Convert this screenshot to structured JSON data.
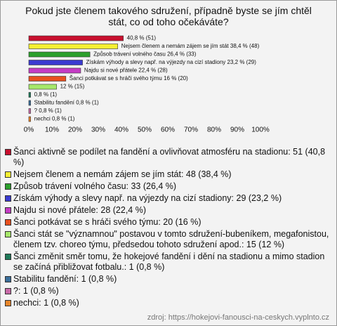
{
  "chart_data": {
    "type": "bar",
    "orientation": "horizontal",
    "title": "Pokud jste členem takového sdružení, případně byste se jím chtěl stát, co od toho očekáváte?",
    "categories": [
      "Šanci aktivně se podílet na fandění a ovlivňovat atmosféru na stadionu: 51 (40,8 %)",
      "Nejsem členem a nemám zájem se jím stát: 48 (38,4 %)",
      "Způsob trávení volného času: 33 (26,4 %)",
      "Získám výhody a slevy např. na výjezdy na cizí stadiony: 29 (23,2 %)",
      "Najdu si nové přátele: 28 (22,4 %)",
      "Šanci potkávat se s hráči svého týmu: 20 (16 %)",
      "Šanci stát se \"významnou\" postavou v tomto sdružení-bubeníkem, megafonistou, členem tzv. choreo týmu, předsedou tohoto sdružení apod.: 15 (12 %)",
      "Šanci změnit směr tomu, že hokejové fandění i dění na stadionu a mimo stadion se začíná přibližovat fotbalu.: 1 (0,8 %)",
      "Stabilitu fandění: 1 (0,8 %)",
      "?: 1 (0,8 %)",
      "nechci: 1 (0,8 %)"
    ],
    "values": [
      40.8,
      38.4,
      26.4,
      23.2,
      22.4,
      16,
      12,
      0.8,
      0.8,
      0.8,
      0.8
    ],
    "value_labels": [
      "40,8 % (51)",
      "Nejsem členem a nemám zájem se jím stát 38,4 % (48)",
      "Způsob trávení volného času 26,4 % (33)",
      "Získám výhody a slevy např. na výjezdy na cizí stadiony 23,2 % (29)",
      "Najdu si nové přátele 22,4 % (28)",
      "Šanci potkávat se s hráči svého týmu 16 % (20)",
      "12 % (15)",
      "0,8 % (1)",
      "Stabilitu fandění 0,8 % (1)",
      "? 0,8 % (1)",
      "nechci 0,8 % (1)"
    ],
    "colors": [
      "#c8102e",
      "#f5f032",
      "#2ca02c",
      "#3a3ad0",
      "#c43cc4",
      "#e8501e",
      "#a6e86a",
      "#1f7a5a",
      "#3a6e9a",
      "#c86aa8",
      "#e8862a"
    ],
    "xlim": [
      0,
      100
    ],
    "xticks": [
      {
        "value": 0,
        "label": "0%"
      },
      {
        "value": 10,
        "label": "10%"
      },
      {
        "value": 20,
        "label": "20%"
      },
      {
        "value": 30,
        "label": "30%"
      },
      {
        "value": 40,
        "label": "40%"
      },
      {
        "value": 50,
        "label": "50%"
      },
      {
        "value": 60,
        "label": "60%"
      },
      {
        "value": 70,
        "label": "70%"
      },
      {
        "value": 80,
        "label": "80%"
      },
      {
        "value": 90,
        "label": "90%"
      },
      {
        "value": 100,
        "label": "100%"
      }
    ],
    "source": "zdroj: https://hokejovi-fanousci-na-ceskych.vyplnto.cz"
  }
}
